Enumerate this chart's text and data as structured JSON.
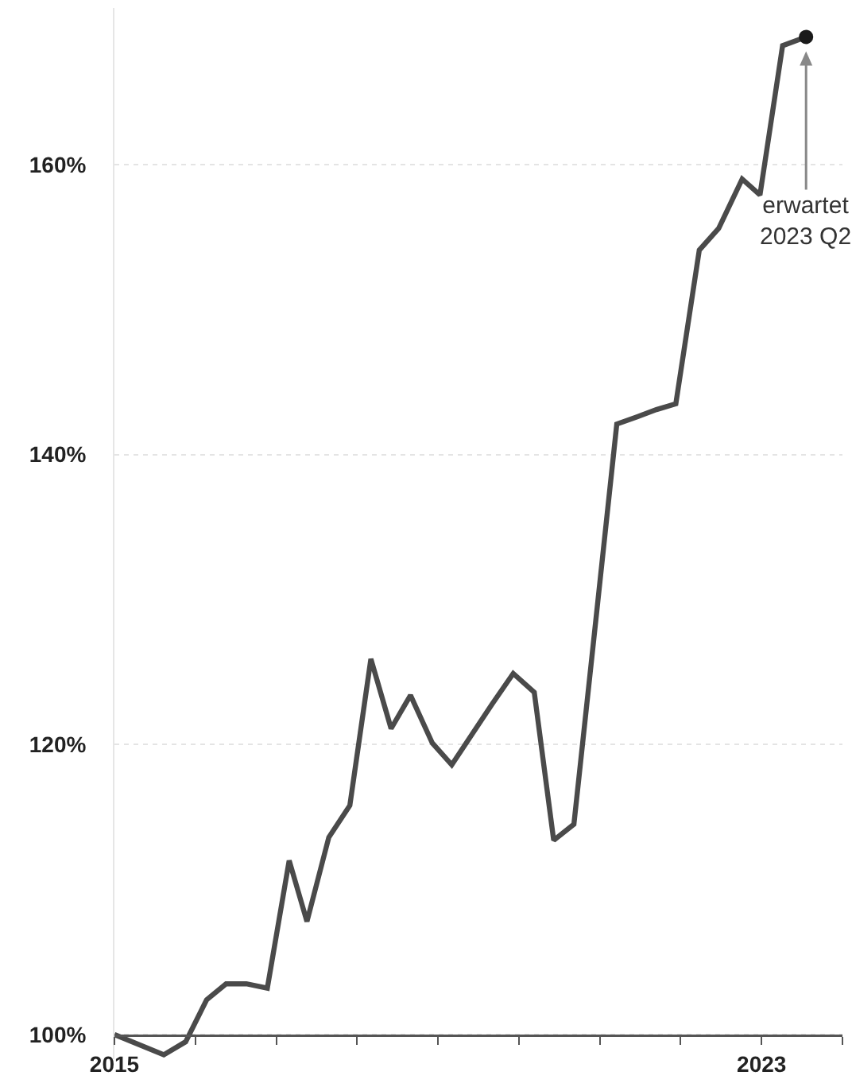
{
  "chart_data": {
    "type": "line",
    "xlim": [
      2015,
      2024
    ],
    "xticks": [
      2015,
      {
        "value": 2016,
        "label": null
      },
      {
        "value": 2017,
        "label": null
      },
      {
        "value": 2018,
        "label": null
      },
      {
        "value": 2019,
        "label": null
      },
      {
        "value": 2020,
        "label": null
      },
      {
        "value": 2021,
        "label": null
      },
      {
        "value": 2022,
        "label": null
      },
      2023,
      {
        "value": 2024,
        "label": null
      }
    ],
    "yticks": [
      {
        "value": 100,
        "label": "100%"
      },
      {
        "value": 120,
        "label": "120%"
      },
      {
        "value": 140,
        "label": "140%"
      },
      {
        "value": 160,
        "label": "160%"
      }
    ],
    "ylim": [
      98.3,
      170.8
    ],
    "grid": "y",
    "marker": "none",
    "line_style": "solid",
    "series": [
      {
        "color": "#4a4a4a",
        "x": [
          2015.0,
          2015.61,
          2015.88,
          2016.14,
          2016.38,
          2016.63,
          2016.89,
          2017.16,
          2017.38,
          2017.65,
          2017.91,
          2018.17,
          2018.42,
          2018.66,
          2018.93,
          2019.17,
          2019.42,
          2019.67,
          2019.93,
          2020.19,
          2020.43,
          2020.68,
          2020.94,
          2021.21,
          2021.46,
          2021.7,
          2021.94,
          2022.23,
          2022.47,
          2022.76,
          2022.98,
          2023.26,
          2023.55
        ],
        "values": [
          100.0,
          98.6,
          99.5,
          102.4,
          103.5,
          103.5,
          103.2,
          112.0,
          107.8,
          113.6,
          115.8,
          125.9,
          121.1,
          123.4,
          120.1,
          118.6,
          120.7,
          122.8,
          124.9,
          123.6,
          113.4,
          114.5,
          128.0,
          142.1,
          142.6,
          143.1,
          143.5,
          154.1,
          155.6,
          159.0,
          157.9,
          168.2,
          168.8
        ]
      },
      {
        "type": "scatter",
        "color": "#1a1a1a",
        "marker": "circle",
        "x": [
          2023.55
        ],
        "values": [
          168.8
        ]
      }
    ],
    "annotations": [
      {
        "text": "erwartet\n2023 Q2",
        "x": 2023.55,
        "y": 168.8
      }
    ]
  }
}
